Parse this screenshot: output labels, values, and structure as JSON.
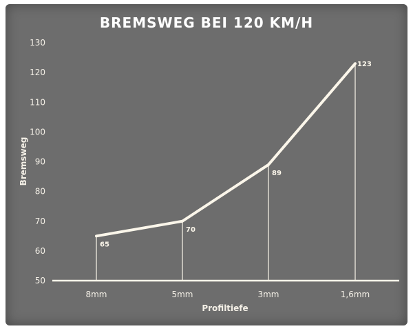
{
  "colors": {
    "background": "#6d6d6d",
    "line": "#fbf6ea",
    "text": "#f3efe6"
  },
  "chart_data": {
    "type": "line",
    "title": "BREMSWEG BEI 120 KM/H",
    "xlabel": "Profiltiefe",
    "ylabel": "Bremsweg",
    "categories": [
      "8mm",
      "5mm",
      "3mm",
      "1,6mm"
    ],
    "series": [
      {
        "values": [
          65,
          70,
          89,
          123
        ]
      }
    ],
    "data_labels": [
      "65",
      "70",
      "89",
      "123"
    ],
    "ylim": [
      50,
      130
    ],
    "yticks": [
      "50",
      "60",
      "70",
      "80",
      "90",
      "100",
      "110",
      "120",
      "130"
    ],
    "grid": false,
    "drop_lines": true,
    "legend": "none"
  }
}
